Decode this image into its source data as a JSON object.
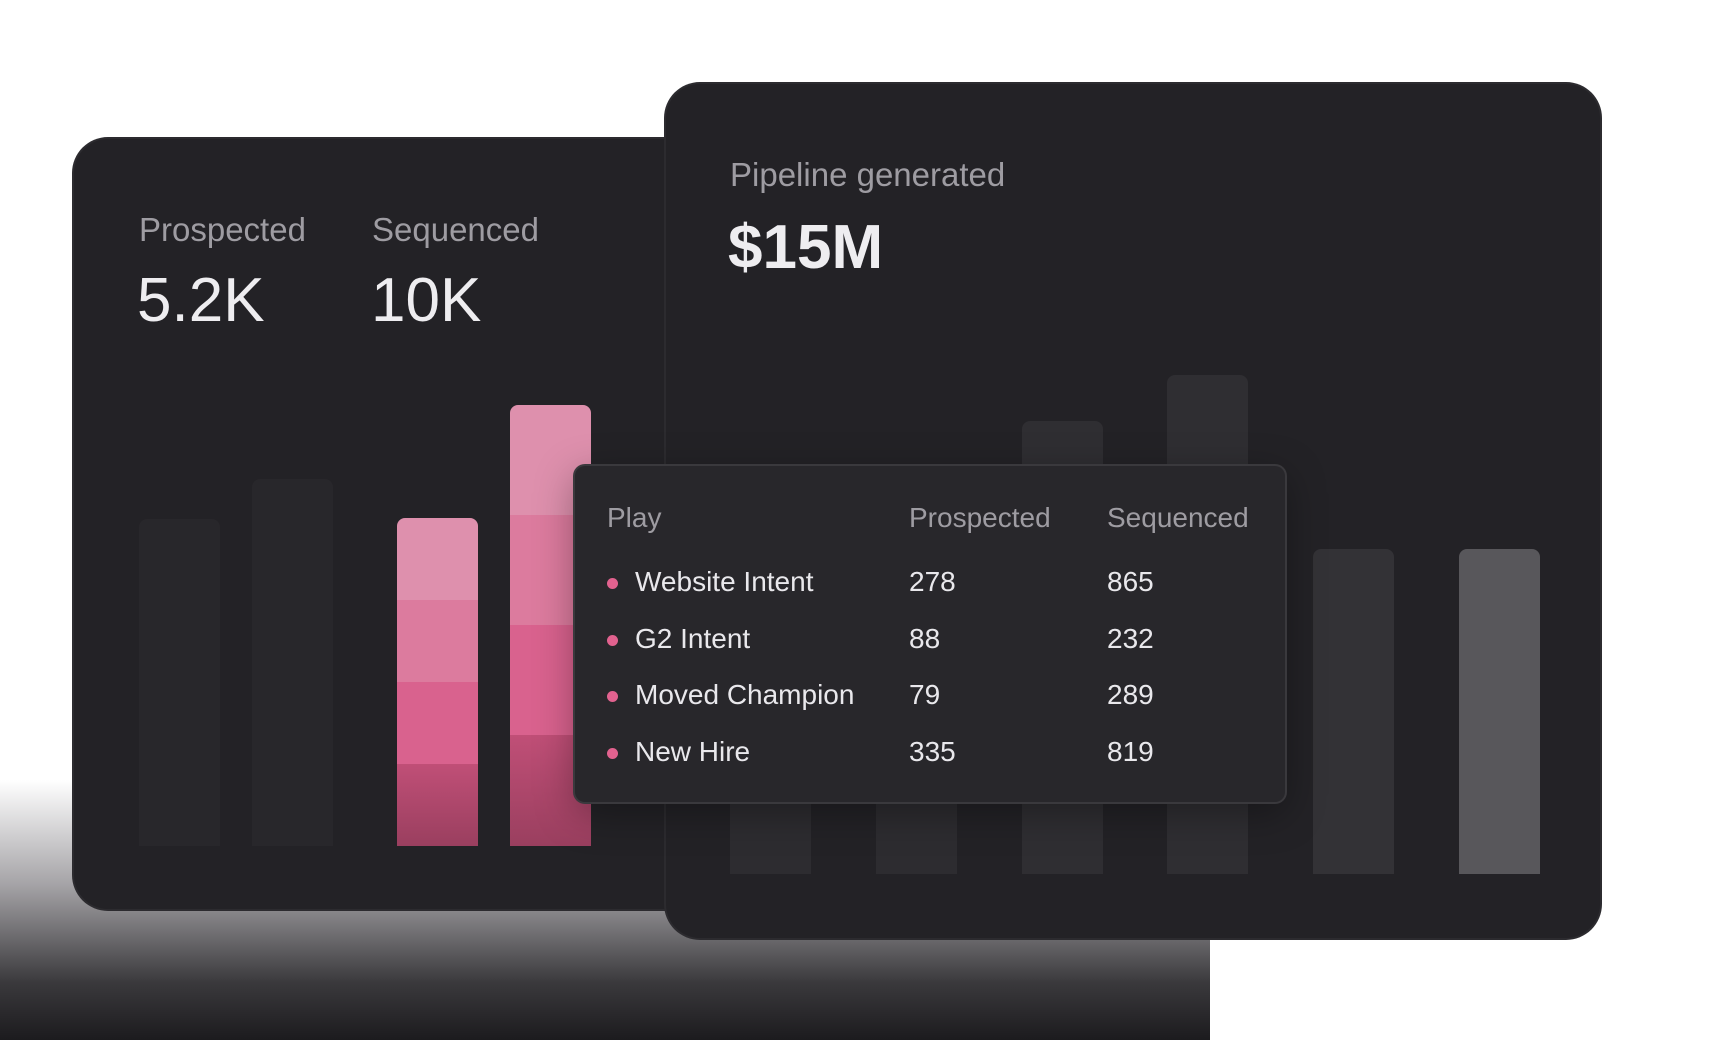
{
  "left_card": {
    "stats": [
      {
        "label": "Prospected",
        "value": "5.2K"
      },
      {
        "label": "Sequenced",
        "value": "10K"
      }
    ]
  },
  "right_card": {
    "label": "Pipeline generated",
    "value": "$15M"
  },
  "tooltip": {
    "headers": [
      "Play",
      "Prospected",
      "Sequenced"
    ],
    "rows": [
      {
        "play": "Website Intent",
        "prospected": "278",
        "sequenced": "865"
      },
      {
        "play": "G2 Intent",
        "prospected": "88",
        "sequenced": "232"
      },
      {
        "play": "Moved Champion",
        "prospected": "79",
        "sequenced": "289"
      },
      {
        "play": "New Hire",
        "prospected": "335",
        "sequenced": "819"
      }
    ],
    "dot_color": "#e2628f"
  },
  "colors": {
    "card_bg": "#232226",
    "muted_bar": "#2a292d",
    "highlight_bar": "#58575b",
    "pink_segments": [
      "#de90ad",
      "#dc7b9e",
      "#d9628e",
      "#b8486f"
    ]
  }
}
